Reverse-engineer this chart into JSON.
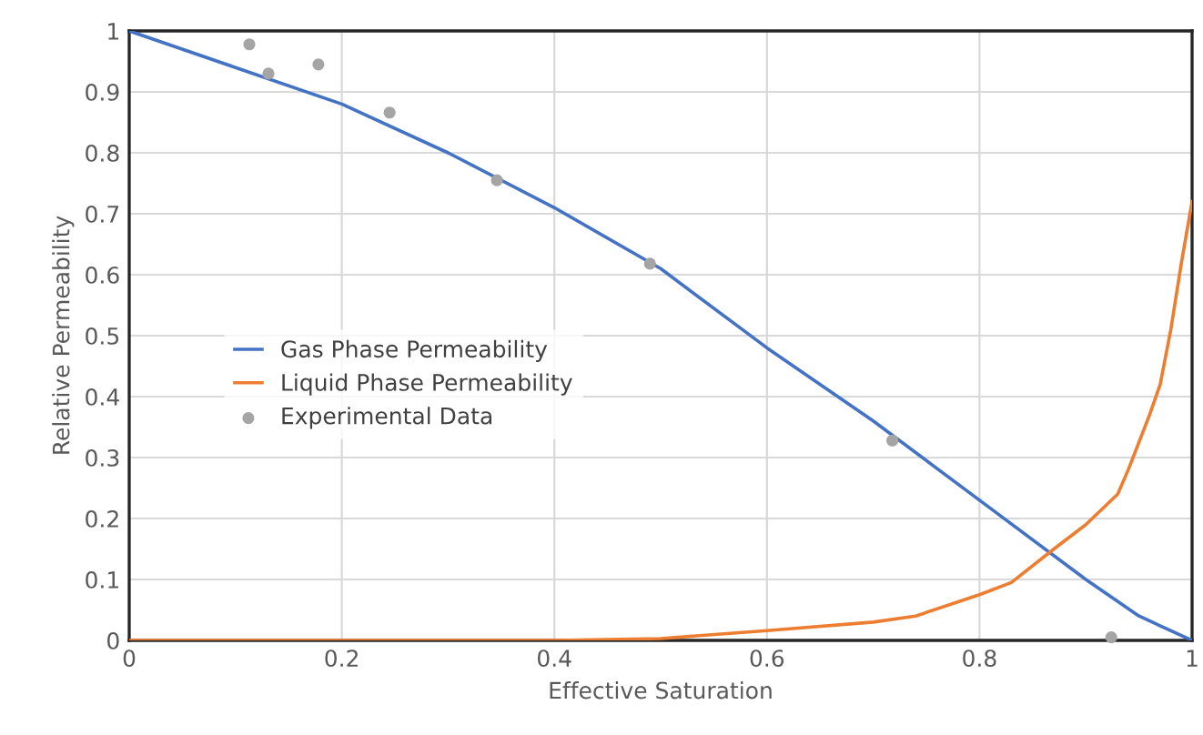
{
  "chart_data": {
    "type": "line",
    "xlabel": "Effective Saturation",
    "ylabel": "Relative Permeability",
    "xlim": [
      0,
      1
    ],
    "ylim": [
      0,
      1
    ],
    "xticks": [
      0,
      0.2,
      0.4,
      0.6,
      0.8,
      1
    ],
    "yticks": [
      0,
      0.1,
      0.2,
      0.3,
      0.4,
      0.5,
      0.6,
      0.7,
      0.8,
      0.9,
      1
    ],
    "grid": true,
    "legend": "left",
    "series": [
      {
        "name": "Gas Phase Permeability",
        "color": "#4472c4",
        "x": [
          0,
          0.1,
          0.2,
          0.3,
          0.4,
          0.5,
          0.6,
          0.7,
          0.8,
          0.9,
          0.95,
          1
        ],
        "values": [
          1,
          0.94,
          0.88,
          0.8,
          0.71,
          0.61,
          0.48,
          0.36,
          0.23,
          0.1,
          0.04,
          0
        ]
      },
      {
        "name": "Liquid Phase Permeability",
        "color": "#ed7d31",
        "x": [
          0,
          0.4,
          0.5,
          0.6,
          0.7,
          0.74,
          0.8,
          0.83,
          0.87,
          0.9,
          0.93,
          0.94,
          0.96,
          0.97,
          0.98,
          0.99,
          1
        ],
        "values": [
          0,
          0,
          0.003,
          0.016,
          0.03,
          0.04,
          0.075,
          0.095,
          0.15,
          0.19,
          0.24,
          0.28,
          0.37,
          0.42,
          0.51,
          0.62,
          0.72
        ]
      },
      {
        "name": "Experimental Data",
        "color": "#a5a5a5",
        "type": "scatter",
        "marker": "circle",
        "x": [
          0.113,
          0.131,
          0.178,
          0.245,
          0.346,
          0.49,
          0.718,
          0.924
        ],
        "values": [
          0.978,
          0.93,
          0.945,
          0.866,
          0.755,
          0.618,
          0.328,
          0.005
        ]
      }
    ]
  }
}
